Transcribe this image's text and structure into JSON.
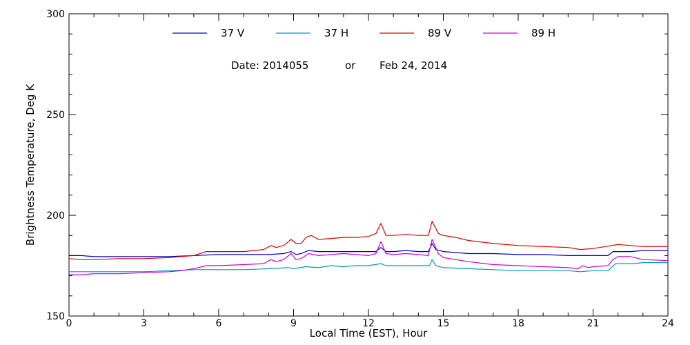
{
  "chart_data": {
    "type": "line",
    "xlabel": "Local Time (EST), Hour",
    "ylabel": "Brightness Temperature, Deg K",
    "xlim": [
      0,
      24
    ],
    "ylim": [
      150,
      300
    ],
    "x_ticks": [
      0,
      3,
      6,
      9,
      12,
      15,
      18,
      21,
      24
    ],
    "y_ticks": [
      150,
      200,
      250,
      300
    ],
    "x_tick_labels": [
      "0",
      "3",
      "6",
      "9",
      "12",
      "15",
      "18",
      "21",
      "24"
    ],
    "y_tick_labels": [
      "150",
      "200",
      "250",
      "300"
    ],
    "grid": false,
    "legend_placement": "top-center",
    "annotation": {
      "date_label": "Date: 2014055",
      "or_label": "or",
      "date_text": "Feb 24, 2014"
    },
    "series": [
      {
        "name": "37 V",
        "color": "#0000cc",
        "points": [
          [
            0,
            180
          ],
          [
            0.5,
            180
          ],
          [
            1,
            179.5
          ],
          [
            2,
            179.5
          ],
          [
            3,
            179.5
          ],
          [
            4,
            179.5
          ],
          [
            5,
            180
          ],
          [
            6,
            180.5
          ],
          [
            7,
            180.5
          ],
          [
            8,
            180.5
          ],
          [
            8.6,
            181
          ],
          [
            8.9,
            182
          ],
          [
            9.1,
            180.5
          ],
          [
            9.3,
            181
          ],
          [
            9.6,
            182.5
          ],
          [
            10,
            182
          ],
          [
            10.5,
            182
          ],
          [
            11,
            182
          ],
          [
            11.5,
            182
          ],
          [
            12,
            182
          ],
          [
            12.3,
            182
          ],
          [
            12.5,
            184
          ],
          [
            12.7,
            182
          ],
          [
            13,
            182
          ],
          [
            13.5,
            182.5
          ],
          [
            14,
            182
          ],
          [
            14.4,
            182
          ],
          [
            14.55,
            186
          ],
          [
            14.7,
            183
          ],
          [
            15,
            182
          ],
          [
            15.5,
            181.5
          ],
          [
            16,
            181
          ],
          [
            17,
            181
          ],
          [
            18,
            180.5
          ],
          [
            19,
            180.5
          ],
          [
            20,
            180
          ],
          [
            21,
            180
          ],
          [
            21.6,
            180
          ],
          [
            21.8,
            182
          ],
          [
            22,
            182
          ],
          [
            22.5,
            182
          ],
          [
            23,
            182.5
          ],
          [
            24,
            182.5
          ]
        ]
      },
      {
        "name": "37 H",
        "color": "#0099bb",
        "points": [
          [
            0,
            172
          ],
          [
            0.5,
            172
          ],
          [
            1,
            172
          ],
          [
            2,
            172
          ],
          [
            3,
            172
          ],
          [
            4,
            172.5
          ],
          [
            5,
            173
          ],
          [
            6,
            173
          ],
          [
            7,
            173
          ],
          [
            8,
            173.5
          ],
          [
            8.8,
            174
          ],
          [
            9,
            173.5
          ],
          [
            9.5,
            174.5
          ],
          [
            10,
            174
          ],
          [
            10.5,
            175
          ],
          [
            11,
            174.5
          ],
          [
            11.5,
            175
          ],
          [
            12,
            175
          ],
          [
            12.5,
            176
          ],
          [
            12.7,
            175
          ],
          [
            13,
            175
          ],
          [
            13.5,
            175
          ],
          [
            14,
            175
          ],
          [
            14.45,
            175
          ],
          [
            14.55,
            178
          ],
          [
            14.7,
            175
          ],
          [
            15,
            174
          ],
          [
            16,
            173.5
          ],
          [
            17,
            173
          ],
          [
            18,
            172.5
          ],
          [
            19,
            172.5
          ],
          [
            20,
            172.5
          ],
          [
            20.5,
            172
          ],
          [
            21,
            172.5
          ],
          [
            21.6,
            172.5
          ],
          [
            21.9,
            176
          ],
          [
            22.3,
            176
          ],
          [
            22.6,
            176
          ],
          [
            23,
            176.5
          ],
          [
            24,
            176.5
          ]
        ]
      },
      {
        "name": "89 V",
        "color": "#dd0000",
        "points": [
          [
            0,
            178.5
          ],
          [
            0.5,
            178
          ],
          [
            1,
            178
          ],
          [
            2,
            178.5
          ],
          [
            3,
            178.5
          ],
          [
            4,
            179
          ],
          [
            4.5,
            179.5
          ],
          [
            5,
            180
          ],
          [
            5.5,
            182
          ],
          [
            6,
            182
          ],
          [
            7,
            182
          ],
          [
            7.8,
            183
          ],
          [
            8.1,
            185
          ],
          [
            8.3,
            184
          ],
          [
            8.6,
            185
          ],
          [
            8.9,
            188
          ],
          [
            9.1,
            186
          ],
          [
            9.3,
            186
          ],
          [
            9.5,
            189
          ],
          [
            9.7,
            190
          ],
          [
            10,
            188
          ],
          [
            10.5,
            188.5
          ],
          [
            11,
            189
          ],
          [
            11.5,
            189
          ],
          [
            12,
            189.5
          ],
          [
            12.3,
            191
          ],
          [
            12.5,
            196
          ],
          [
            12.7,
            190
          ],
          [
            13,
            190
          ],
          [
            13.5,
            190.5
          ],
          [
            14,
            190
          ],
          [
            14.4,
            190
          ],
          [
            14.55,
            197
          ],
          [
            14.8,
            191
          ],
          [
            15,
            190
          ],
          [
            15.5,
            189
          ],
          [
            16,
            187.5
          ],
          [
            17,
            186
          ],
          [
            18,
            185
          ],
          [
            19,
            184.5
          ],
          [
            20,
            184
          ],
          [
            20.5,
            183
          ],
          [
            21,
            183.5
          ],
          [
            21.5,
            184.5
          ],
          [
            22,
            185.5
          ],
          [
            22.5,
            185
          ],
          [
            23,
            184.5
          ],
          [
            24,
            184.5
          ]
        ]
      },
      {
        "name": "89 H",
        "color": "#cc00cc",
        "points": [
          [
            0,
            170.5
          ],
          [
            0.5,
            170.5
          ],
          [
            1,
            171
          ],
          [
            2,
            171
          ],
          [
            3,
            171.5
          ],
          [
            4,
            172
          ],
          [
            4.5,
            172.5
          ],
          [
            5,
            173.5
          ],
          [
            5.5,
            175
          ],
          [
            6,
            175
          ],
          [
            7,
            175.5
          ],
          [
            7.8,
            176
          ],
          [
            8.1,
            178
          ],
          [
            8.3,
            177
          ],
          [
            8.6,
            178
          ],
          [
            8.9,
            181
          ],
          [
            9.1,
            178
          ],
          [
            9.3,
            178.5
          ],
          [
            9.6,
            181
          ],
          [
            10,
            180
          ],
          [
            10.5,
            180.5
          ],
          [
            11,
            181
          ],
          [
            11.5,
            180.5
          ],
          [
            12,
            180
          ],
          [
            12.3,
            181
          ],
          [
            12.5,
            187
          ],
          [
            12.7,
            181
          ],
          [
            13,
            180.5
          ],
          [
            13.5,
            181
          ],
          [
            14,
            180.5
          ],
          [
            14.4,
            180
          ],
          [
            14.55,
            188
          ],
          [
            14.8,
            181
          ],
          [
            15,
            179
          ],
          [
            15.5,
            178
          ],
          [
            16,
            177
          ],
          [
            17,
            175.5
          ],
          [
            18,
            175
          ],
          [
            19,
            174.5
          ],
          [
            20,
            174
          ],
          [
            20.4,
            173.5
          ],
          [
            20.6,
            175
          ],
          [
            20.8,
            174
          ],
          [
            21,
            174.5
          ],
          [
            21.6,
            175
          ],
          [
            21.8,
            178
          ],
          [
            22,
            179.5
          ],
          [
            22.5,
            179.5
          ],
          [
            23,
            178
          ],
          [
            24,
            177.5
          ]
        ]
      }
    ]
  }
}
